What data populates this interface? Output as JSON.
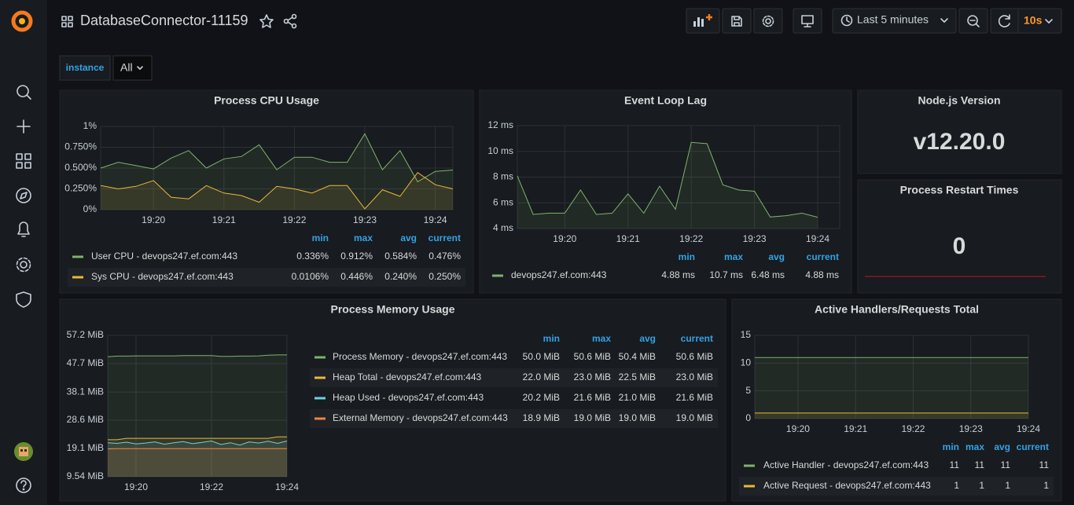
{
  "header": {
    "title": "DatabaseConnector-11159",
    "time_range": "Last 5 minutes",
    "refresh": "10s"
  },
  "variables": [
    {
      "name": "instance",
      "value": "All"
    }
  ],
  "stats": [
    {
      "title": "Node.js Version",
      "value": "v12.20.0"
    },
    {
      "title": "Process Restart Times",
      "value": 0
    }
  ],
  "chart_data": [
    {
      "type": "line",
      "title": "Process CPU Usage",
      "categories": [
        null,
        null,
        null,
        "19:20",
        null,
        null,
        null,
        "19:21",
        null,
        null,
        null,
        "19:22",
        null,
        null,
        null,
        "19:23",
        null,
        null,
        null,
        "19:24",
        null
      ],
      "stat_columns": [
        "min",
        "max",
        "avg",
        "current"
      ],
      "series": [
        {
          "name": "User CPU - devops247.ef.com:443",
          "color": "#7eb26d",
          "values": [
            0.5,
            0.57,
            0.53,
            0.49,
            0.62,
            0.71,
            0.5,
            0.61,
            0.64,
            0.78,
            0.48,
            0.63,
            0.63,
            0.57,
            0.57,
            0.912,
            0.48,
            0.71,
            0.336,
            0.46,
            0.476
          ],
          "stats": [
            "0.336%",
            "0.912%",
            "0.584%",
            "0.476%"
          ]
        },
        {
          "name": "Sys CPU - devops247.ef.com:443",
          "color": "#eab839",
          "values": [
            0.29,
            0.25,
            0.28,
            0.35,
            0.15,
            0.13,
            0.29,
            0.2,
            0.17,
            0.09,
            0.28,
            0.25,
            0.2,
            0.29,
            0.29,
            0.0106,
            0.24,
            0.16,
            0.446,
            0.3,
            0.25
          ],
          "stats": [
            "0.0106%",
            "0.446%",
            "0.240%",
            "0.250%"
          ]
        }
      ],
      "ylim": [
        0,
        1
      ],
      "yticks": [
        {
          "value": 0,
          "label": "0%"
        },
        {
          "value": 0.25,
          "label": "0.250%"
        },
        {
          "value": 0.5,
          "label": "0.500%"
        },
        {
          "value": 0.75,
          "label": "0.750%"
        },
        {
          "value": 1,
          "label": "1%"
        }
      ],
      "grid": true
    },
    {
      "type": "line",
      "title": "Event Loop Lag",
      "categories": [
        null,
        null,
        null,
        "19:20",
        null,
        null,
        null,
        "19:21",
        null,
        null,
        null,
        "19:22",
        null,
        null,
        null,
        "19:23",
        null,
        null,
        null,
        "19:24"
      ],
      "stat_columns": [
        "min",
        "max",
        "avg",
        "current"
      ],
      "series": [
        {
          "name": "devops247.ef.com:443",
          "color": "#7eb26d",
          "values": [
            8.1,
            5.1,
            5.2,
            5.2,
            7.0,
            5.1,
            5.2,
            6.7,
            5.2,
            7.3,
            5.5,
            10.7,
            10.6,
            7.4,
            7.0,
            6.9,
            4.9,
            5.0,
            5.2,
            4.88
          ],
          "stats": [
            "4.88 ms",
            "10.7 ms",
            "6.48 ms",
            "4.88 ms"
          ]
        }
      ],
      "ylim": [
        4,
        12
      ],
      "yticks": [
        {
          "value": 4,
          "label": "4 ms"
        },
        {
          "value": 6,
          "label": "6 ms"
        },
        {
          "value": 8,
          "label": "8 ms"
        },
        {
          "value": 10,
          "label": "10 ms"
        },
        {
          "value": 12,
          "label": "12 ms"
        }
      ],
      "grid": true
    },
    {
      "type": "line",
      "title": "Process Memory Usage",
      "categories": [
        null,
        null,
        null,
        "19:20",
        null,
        null,
        null,
        null,
        null,
        null,
        null,
        "19:22",
        null,
        null,
        null,
        null,
        null,
        null,
        null,
        "19:24"
      ],
      "stat_columns": [
        "min",
        "max",
        "avg",
        "current"
      ],
      "series": [
        {
          "name": "Process Memory - devops247.ef.com:443",
          "color": "#7eb26d",
          "values": [
            50.0,
            50.2,
            50.2,
            50.3,
            50.3,
            50.3,
            50.3,
            50.3,
            50.4,
            50.4,
            50.4,
            50.4,
            50.1,
            50.1,
            50.2,
            50.2,
            50.3,
            50.5,
            50.6,
            50.6
          ],
          "stats": [
            "50.0 MiB",
            "50.6 MiB",
            "50.4 MiB",
            "50.6 MiB"
          ]
        },
        {
          "name": "Heap Total - devops247.ef.com:443",
          "color": "#eab839",
          "values": [
            22.0,
            22.0,
            22.5,
            22.5,
            22.5,
            22.5,
            22.5,
            22.5,
            22.5,
            22.5,
            22.5,
            22.5,
            22.5,
            22.5,
            22.5,
            22.5,
            22.5,
            22.5,
            23.0,
            23.0
          ],
          "stats": [
            "22.0 MiB",
            "23.0 MiB",
            "22.5 MiB",
            "23.0 MiB"
          ]
        },
        {
          "name": "Heap Used - devops247.ef.com:443",
          "color": "#6ed0e0",
          "values": [
            21.0,
            20.8,
            21.2,
            20.6,
            20.9,
            21.3,
            20.5,
            21.0,
            21.4,
            20.7,
            21.1,
            21.6,
            20.4,
            21.0,
            20.2,
            21.3,
            20.9,
            21.5,
            20.8,
            21.6
          ],
          "stats": [
            "20.2 MiB",
            "21.6 MiB",
            "21.0 MiB",
            "21.6 MiB"
          ]
        },
        {
          "name": "External Memory - devops247.ef.com:443",
          "color": "#ef843c",
          "values": [
            18.9,
            19.0,
            19.0,
            19.0,
            19.0,
            19.0,
            19.0,
            19.0,
            19.0,
            19.0,
            19.0,
            19.0,
            19.0,
            19.0,
            19.0,
            19.0,
            19.0,
            19.0,
            19.0,
            19.0
          ],
          "stats": [
            "18.9 MiB",
            "19.0 MiB",
            "19.0 MiB",
            "19.0 MiB"
          ]
        }
      ],
      "ylim": [
        9.54,
        57.2
      ],
      "yticks": [
        {
          "value": 9.54,
          "label": "9.54 MiB"
        },
        {
          "value": 19.1,
          "label": "19.1 MiB"
        },
        {
          "value": 28.6,
          "label": "28.6 MiB"
        },
        {
          "value": 38.1,
          "label": "38.1 MiB"
        },
        {
          "value": 47.7,
          "label": "47.7 MiB"
        },
        {
          "value": 57.2,
          "label": "57.2 MiB"
        }
      ],
      "grid": true
    },
    {
      "type": "line",
      "title": "Active Handlers/Requests Total",
      "categories": [
        null,
        null,
        null,
        "19:20",
        null,
        null,
        null,
        "19:21",
        null,
        null,
        null,
        "19:22",
        null,
        null,
        null,
        "19:23",
        null,
        null,
        null,
        "19:24"
      ],
      "stat_columns": [
        "min",
        "max",
        "avg",
        "current"
      ],
      "series": [
        {
          "name": "Active Handler - devops247.ef.com:443",
          "color": "#7eb26d",
          "values": [
            11,
            11,
            11,
            11,
            11,
            11,
            11,
            11,
            11,
            11,
            11,
            11,
            11,
            11,
            11,
            11,
            11,
            11,
            11,
            11
          ],
          "stats": [
            "11",
            "11",
            "11",
            "11"
          ]
        },
        {
          "name": "Active Request - devops247.ef.com:443",
          "color": "#eab839",
          "values": [
            1,
            1,
            1,
            1,
            1,
            1,
            1,
            1,
            1,
            1,
            1,
            1,
            1,
            1,
            1,
            1,
            1,
            1,
            1,
            1
          ],
          "stats": [
            "1",
            "1",
            "1",
            "1"
          ]
        }
      ],
      "ylim": [
        0,
        15
      ],
      "yticks": [
        0,
        5,
        10,
        15
      ],
      "grid": true
    }
  ]
}
